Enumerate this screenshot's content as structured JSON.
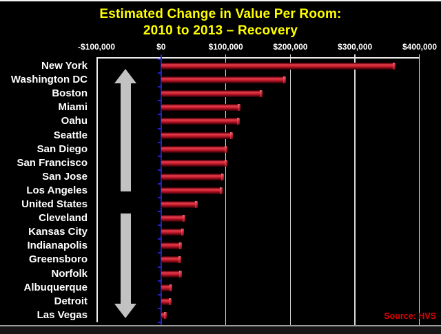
{
  "chart_data": {
    "type": "bar",
    "orientation": "horizontal",
    "title": "Estimated Change in Value Per Room:",
    "subtitle": "2010 to 2013 – Recovery",
    "source": "Source: HVS",
    "categories": [
      "New York",
      "Washington DC",
      "Boston",
      "Miami",
      "Oahu",
      "Seattle",
      "San Diego",
      "San Francisco",
      "San Jose",
      "Los Angeles",
      "United States",
      "Cleveland",
      "Kansas City",
      "Indianapolis",
      "Greensboro",
      "Norfolk",
      "Albuquerque",
      "Detroit",
      "Las Vegas"
    ],
    "values": [
      363000,
      193000,
      157000,
      123000,
      122000,
      111000,
      102000,
      102000,
      97000,
      95000,
      56000,
      37000,
      35000,
      32000,
      31000,
      32000,
      17000,
      16000,
      9000
    ],
    "x_ticks": [
      "-$100,000",
      "$0",
      "$100,000",
      "$200,000",
      "$300,000",
      "$400,000"
    ],
    "x_tick_values": [
      -100000,
      0,
      100000,
      200000,
      300000,
      400000
    ],
    "xlim": [
      -100000,
      400000
    ],
    "grid": true,
    "legend": false,
    "annotations": [
      {
        "name": "up-arrow"
      },
      {
        "name": "down-arrow"
      }
    ],
    "colors": {
      "background": "#000000",
      "title": "#ffff00",
      "text": "#ffffff",
      "bar": "#cc1a28",
      "bar_highlight": "#e8414e",
      "zero_axis": "#2323cc",
      "gridline": "#d9d9d9",
      "frame": "#ececec",
      "arrow": "#c2c2c2",
      "source": "#e00000"
    }
  }
}
